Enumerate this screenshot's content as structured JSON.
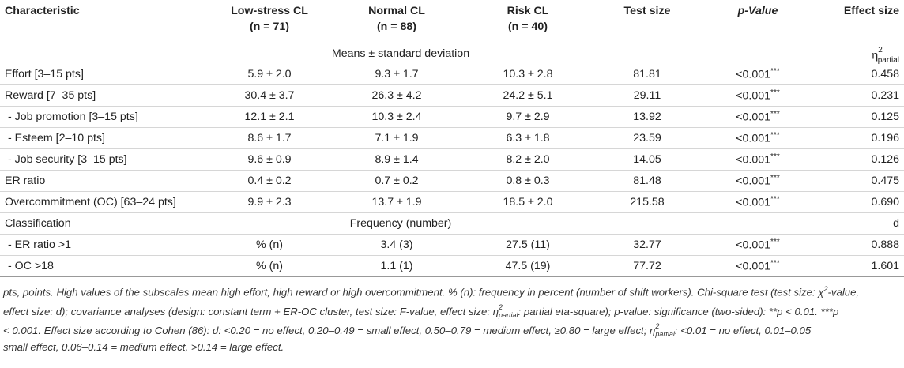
{
  "header": {
    "characteristic": "Characteristic",
    "low_stress": "Low-stress CL",
    "low_stress_n": "(n = 71)",
    "normal": "Normal CL",
    "normal_n": "(n = 88)",
    "risk": "Risk CL",
    "risk_n": "(n = 40)",
    "test_size": "Test size",
    "p_value": "p-Value",
    "effect_size": "Effect size"
  },
  "sections": {
    "means_label": "Means ± standard deviation",
    "eta_symbol": "η",
    "eta_sup": "2",
    "eta_sub": "partial",
    "classification": "Classification",
    "frequency_label": "Frequency (number)",
    "d_label": "d"
  },
  "rows_means": [
    {
      "label": "Effort [3–15 pts]",
      "low": "5.9 ± 2.0",
      "normal": "9.3 ± 1.7",
      "risk": "10.3 ± 2.8",
      "test": "81.81",
      "p": "<0.001",
      "stars": "***",
      "effect": "0.458"
    },
    {
      "label": "Reward [7–35 pts]",
      "low": "30.4 ± 3.7",
      "normal": "26.3 ± 4.2",
      "risk": "24.2 ± 5.1",
      "test": "29.11",
      "p": "<0.001",
      "stars": "***",
      "effect": "0.231"
    },
    {
      "label": " - Job promotion [3–15 pts]",
      "low": "12.1 ± 2.1",
      "normal": "10.3 ± 2.4",
      "risk": "9.7 ± 2.9",
      "test": "13.92",
      "p": "<0.001",
      "stars": "***",
      "effect": "0.125"
    },
    {
      "label": " - Esteem [2–10 pts]",
      "low": "8.6 ± 1.7",
      "normal": "7.1 ± 1.9",
      "risk": "6.3 ± 1.8",
      "test": "23.59",
      "p": "<0.001",
      "stars": "***",
      "effect": "0.196"
    },
    {
      "label": " - Job security [3–15 pts]",
      "low": "9.6 ± 0.9",
      "normal": "8.9 ± 1.4",
      "risk": "8.2 ± 2.0",
      "test": "14.05",
      "p": "<0.001",
      "stars": "***",
      "effect": "0.126"
    },
    {
      "label": "ER ratio",
      "low": "0.4 ± 0.2",
      "normal": "0.7 ± 0.2",
      "risk": "0.8 ± 0.3",
      "test": "81.48",
      "p": "<0.001",
      "stars": "***",
      "effect": "0.475"
    },
    {
      "label": "Overcommitment (OC) [63–24 pts]",
      "low": "9.9 ± 2.3",
      "normal": "13.7 ± 1.9",
      "risk": "18.5 ± 2.0",
      "test": "215.58",
      "p": "<0.001",
      "stars": "***",
      "effect": "0.690"
    }
  ],
  "rows_freq": [
    {
      "label": " - ER ratio >1",
      "low": "% (n)",
      "normal": "3.4 (3)",
      "risk": "27.5 (11)",
      "test": "32.77",
      "p": "<0.001",
      "stars": "***",
      "effect": "0.888"
    },
    {
      "label": " - OC >18",
      "low": "% (n)",
      "normal": "1.1 (1)",
      "risk": "47.5 (19)",
      "test": "77.72",
      "p": "<0.001",
      "stars": "***",
      "effect": "1.601"
    }
  ],
  "footnote": {
    "line1": "pts, points. High values of the subscales mean high effort, high reward or high overcommitment. % (n): frequency in percent (number of shift workers). Chi-square test (test size: χ",
    "line1_sup": "2",
    "line1_end": "-value,",
    "line2a": "effect size: d); covariance analyses (design: constant term + ER-OC cluster, test size: F-value, effect size: η",
    "line2_sub": "partial",
    "line2_sup": "2",
    "line2b": ": partial eta-square); p-value: significance (two-sided): **p < 0.01. ***p",
    "line3a": "< 0.001. Effect size according to Cohen (86): d: <0.20 = no effect, 0.20–0.49 = small effect, 0.50–0.79 = medium effect, ≥0.80 = large effect; η",
    "line3_sub": "partial",
    "line3_sup": "2",
    "line3b": ": <0.01 = no effect, 0.01–0.05",
    "line4": "small effect, 0.06–0.14 = medium effect, >0.14 = large effect."
  }
}
